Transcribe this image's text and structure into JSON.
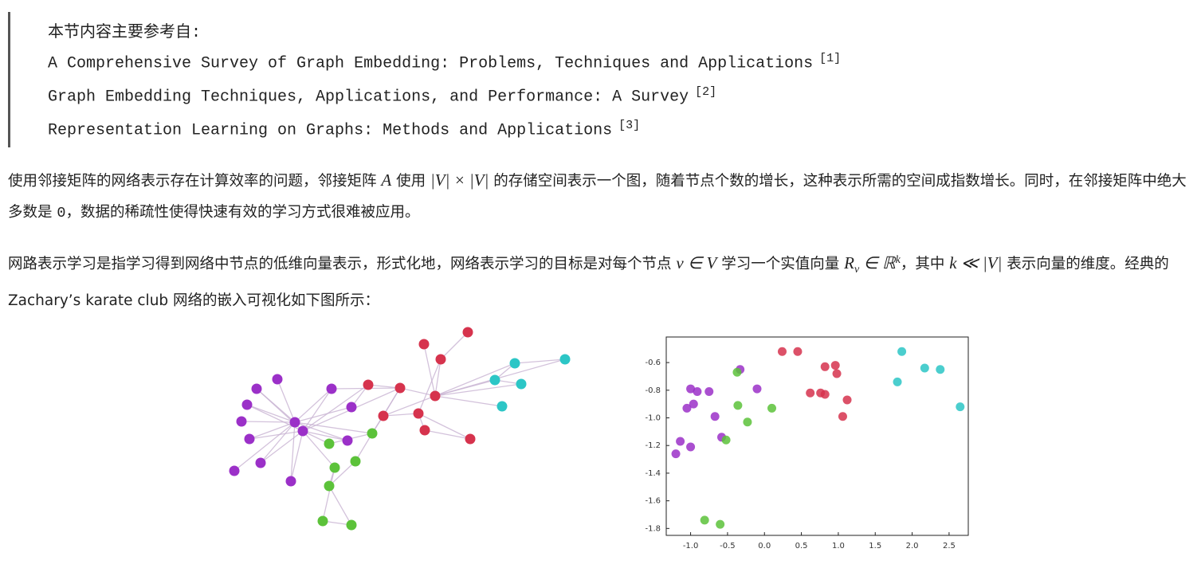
{
  "quote": {
    "intro": "本节内容主要参考自:",
    "refs": [
      {
        "title": "A Comprehensive Survey of Graph Embedding: Problems, Techniques and Applications",
        "note": "[1]"
      },
      {
        "title": "Graph Embedding Techniques, Applications, and Performance: A Survey",
        "note": "[2]"
      },
      {
        "title": "Representation Learning on Graphs: Methods and Applications",
        "note": "[3]"
      }
    ]
  },
  "paragraphs": [
    [
      {
        "text": "使用邻接矩阵的网络表示存在计算效率的问题，邻接矩阵 "
      },
      {
        "text": "A",
        "kind": "math"
      },
      {
        "text": " 使用 "
      },
      {
        "text": "|V| × |V|",
        "kind": "math"
      },
      {
        "text": " 的存储空间表示一个图，随着节点个数的增长，这种表示所需的空间成指数增长。同时，在邻接矩阵中绝大多数是 "
      },
      {
        "text": "0",
        "kind": "code"
      },
      {
        "text": "，数据的稀疏性使得快速有效的学习方式很难被应用。"
      }
    ],
    [
      {
        "text": "网路表示学习是指学习得到网络中节点的低维向量表示，形式化地，网络表示学习的目标是对每个节点 "
      },
      {
        "text": "v ∈ V",
        "kind": "math"
      },
      {
        "text": " 学习一个实值向量 "
      },
      {
        "text": "R",
        "kind": "math"
      },
      {
        "text": "v",
        "kind": "sub"
      },
      {
        "text": " ∈ ℝ",
        "kind": "math"
      },
      {
        "text": "k",
        "kind": "sup"
      },
      {
        "text": "，其中 "
      },
      {
        "text": "k ≪ |V|",
        "kind": "math"
      },
      {
        "text": " 表示向量的维度。经典的 Zachary’s karate club 网络的嵌入可视化如下图所示："
      }
    ]
  ],
  "figure": {
    "scatter": {
      "type": "scatter",
      "xlim": [
        -1.33,
        2.76
      ],
      "ylim": [
        -1.85,
        -0.415
      ],
      "xticks": [
        {
          "value": -1,
          "label": "-1.0"
        },
        -0.5,
        {
          "value": 0,
          "label": "0.0"
        },
        0.5,
        {
          "value": 1,
          "label": "1.0"
        },
        1.5,
        {
          "value": 2,
          "label": "2.0"
        },
        2.5
      ],
      "yticks": [
        -0.6,
        -0.8,
        {
          "value": -1,
          "label": "-1.0"
        },
        -1.2,
        -1.4,
        -1.6,
        -1.8
      ],
      "series": [
        {
          "color": "#9b30c8",
          "x": [
            -1.2,
            -1.14,
            -1.0,
            -1.05,
            -0.96,
            -1.0,
            -0.91,
            -0.75,
            -0.67,
            -0.58,
            -0.33,
            -0.1
          ],
          "y": [
            -1.26,
            -1.17,
            -1.21,
            -0.93,
            -0.9,
            -0.79,
            -0.81,
            -0.81,
            -0.99,
            -1.14,
            -0.65,
            -0.79
          ]
        },
        {
          "color": "#5cc23a",
          "x": [
            -0.37,
            -0.36,
            -0.52,
            -0.23,
            0.1,
            -0.81,
            -0.6
          ],
          "y": [
            -0.67,
            -0.91,
            -1.16,
            -1.03,
            -0.93,
            -1.74,
            -1.77
          ]
        },
        {
          "color": "#d6334d",
          "x": [
            0.24,
            0.45,
            0.82,
            0.96,
            0.98,
            0.62,
            0.76,
            0.82,
            1.12,
            1.06
          ],
          "y": [
            -0.52,
            -0.52,
            -0.63,
            -0.62,
            -0.68,
            -0.82,
            -0.82,
            -0.83,
            -0.87,
            -0.99
          ]
        },
        {
          "color": "#2cc6c6",
          "x": [
            1.86,
            2.17,
            2.38,
            1.8,
            2.65
          ],
          "y": [
            -0.52,
            -0.64,
            -0.65,
            -0.74,
            -0.92
          ]
        }
      ]
    }
  }
}
